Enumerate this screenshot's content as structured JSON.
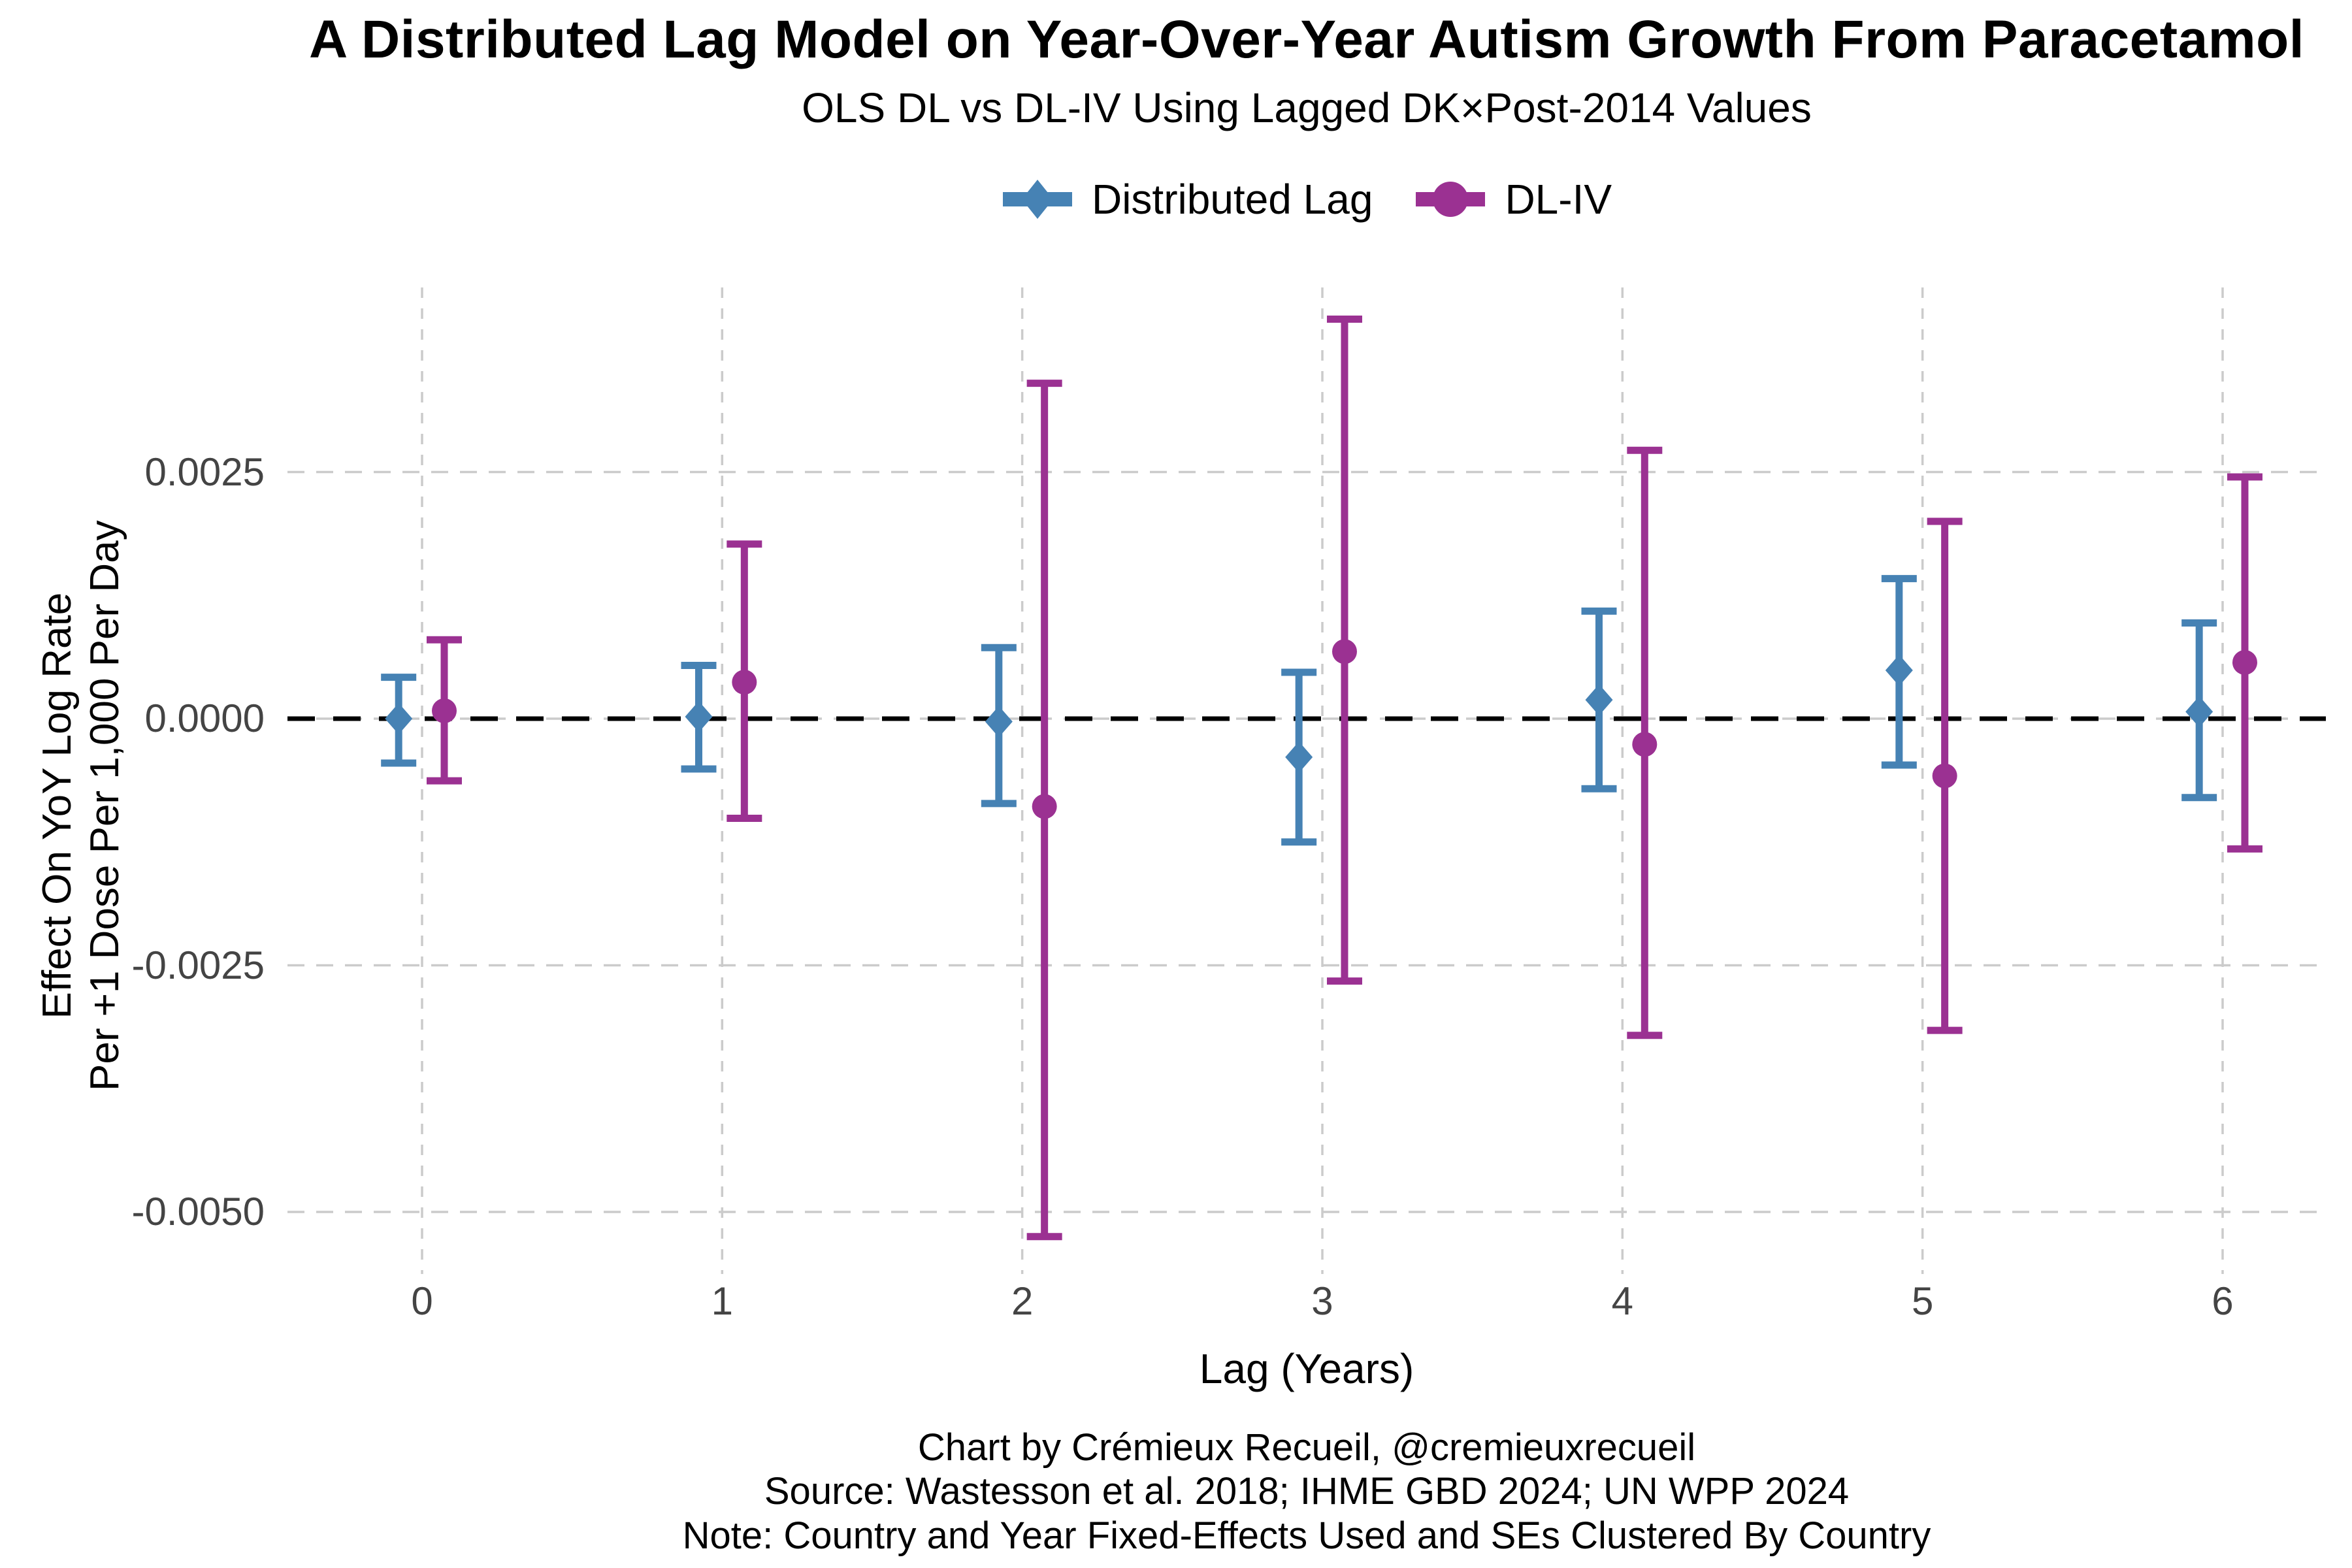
{
  "chart": {
    "title": "A Distributed Lag Model on Year-Over-Year Autism Growth From Paracetamol",
    "subtitle": "OLS DL vs DL-IV Using Lagged DK×Post-2014 Values",
    "legend": [
      {
        "label": "Distributed Lag",
        "marker": "diamond",
        "color": "#4682B4"
      },
      {
        "label": "DL-IV",
        "marker": "circle",
        "color": "#9B3192"
      }
    ],
    "x_axis": {
      "title": "Lag (Years)",
      "ticks": [
        "0",
        "1",
        "2",
        "3",
        "4",
        "5",
        "6"
      ]
    },
    "y_axis": {
      "title_line1": "Effect On YoY Log Rate",
      "title_line2": "Per +1 Dose Per 1,000 Per Day",
      "ticks": [
        "0.0025",
        "0.0000",
        "-0.0025",
        "-0.0050"
      ],
      "tick_values": [
        0.0025,
        0.0,
        -0.0025,
        -0.005
      ]
    },
    "footer": [
      "Chart by Crémieux Recueil, @cremieuxrecueil",
      "Source: Wastesson et al. 2018; IHME GBD 2024; UN WPP 2024",
      "Note: Country and Year Fixed-Effects Used and SEs Clustered By Country"
    ],
    "colors": {
      "distributed_lag": "#4682B4",
      "dl_iv": "#9B3192",
      "gridline": "#CBCBCB",
      "zero_line": "#000000",
      "tick_text": "#444444"
    }
  },
  "chart_data": {
    "type": "scatter",
    "title": "A Distributed Lag Model on Year-Over-Year Autism Growth From Paracetamol",
    "subtitle": "OLS DL vs DL-IV Using Lagged DK×Post-2014 Values",
    "xlabel": "Lag (Years)",
    "ylabel": "Effect On YoY Log Rate Per +1 Dose Per 1,000 Per Day",
    "x": [
      0,
      1,
      2,
      3,
      4,
      5,
      6
    ],
    "xlim": [
      -0.45,
      6.35
    ],
    "ylim": [
      -0.0057,
      0.0044
    ],
    "grid": true,
    "legend_position": "top",
    "reference_line_y": 0.0,
    "series": [
      {
        "name": "Distributed Lag",
        "marker": "diamond",
        "color": "#4682B4",
        "dodge": -0.078,
        "estimates": [
          0.0,
          2e-05,
          -3e-05,
          -0.00039,
          0.00019,
          0.00049,
          7e-05
        ],
        "ci_low": [
          -0.00045,
          -0.00051,
          -0.00086,
          -0.00125,
          -0.00071,
          -0.00047,
          -0.0008
        ],
        "ci_high": [
          0.00042,
          0.00054,
          0.00072,
          0.00047,
          0.00109,
          0.00142,
          0.00097
        ]
      },
      {
        "name": "DL-IV",
        "marker": "circle",
        "color": "#9B3192",
        "dodge": 0.074,
        "estimates": [
          8e-05,
          0.00037,
          -0.00089,
          0.00068,
          -0.00026,
          -0.00058,
          0.00057
        ],
        "ci_low": [
          -0.00063,
          -0.00101,
          -0.00525,
          -0.00266,
          -0.00321,
          -0.00316,
          -0.00132
        ],
        "ci_high": [
          0.0008,
          0.00177,
          0.0034,
          0.00405,
          0.00272,
          0.002,
          0.00245
        ]
      }
    ]
  }
}
